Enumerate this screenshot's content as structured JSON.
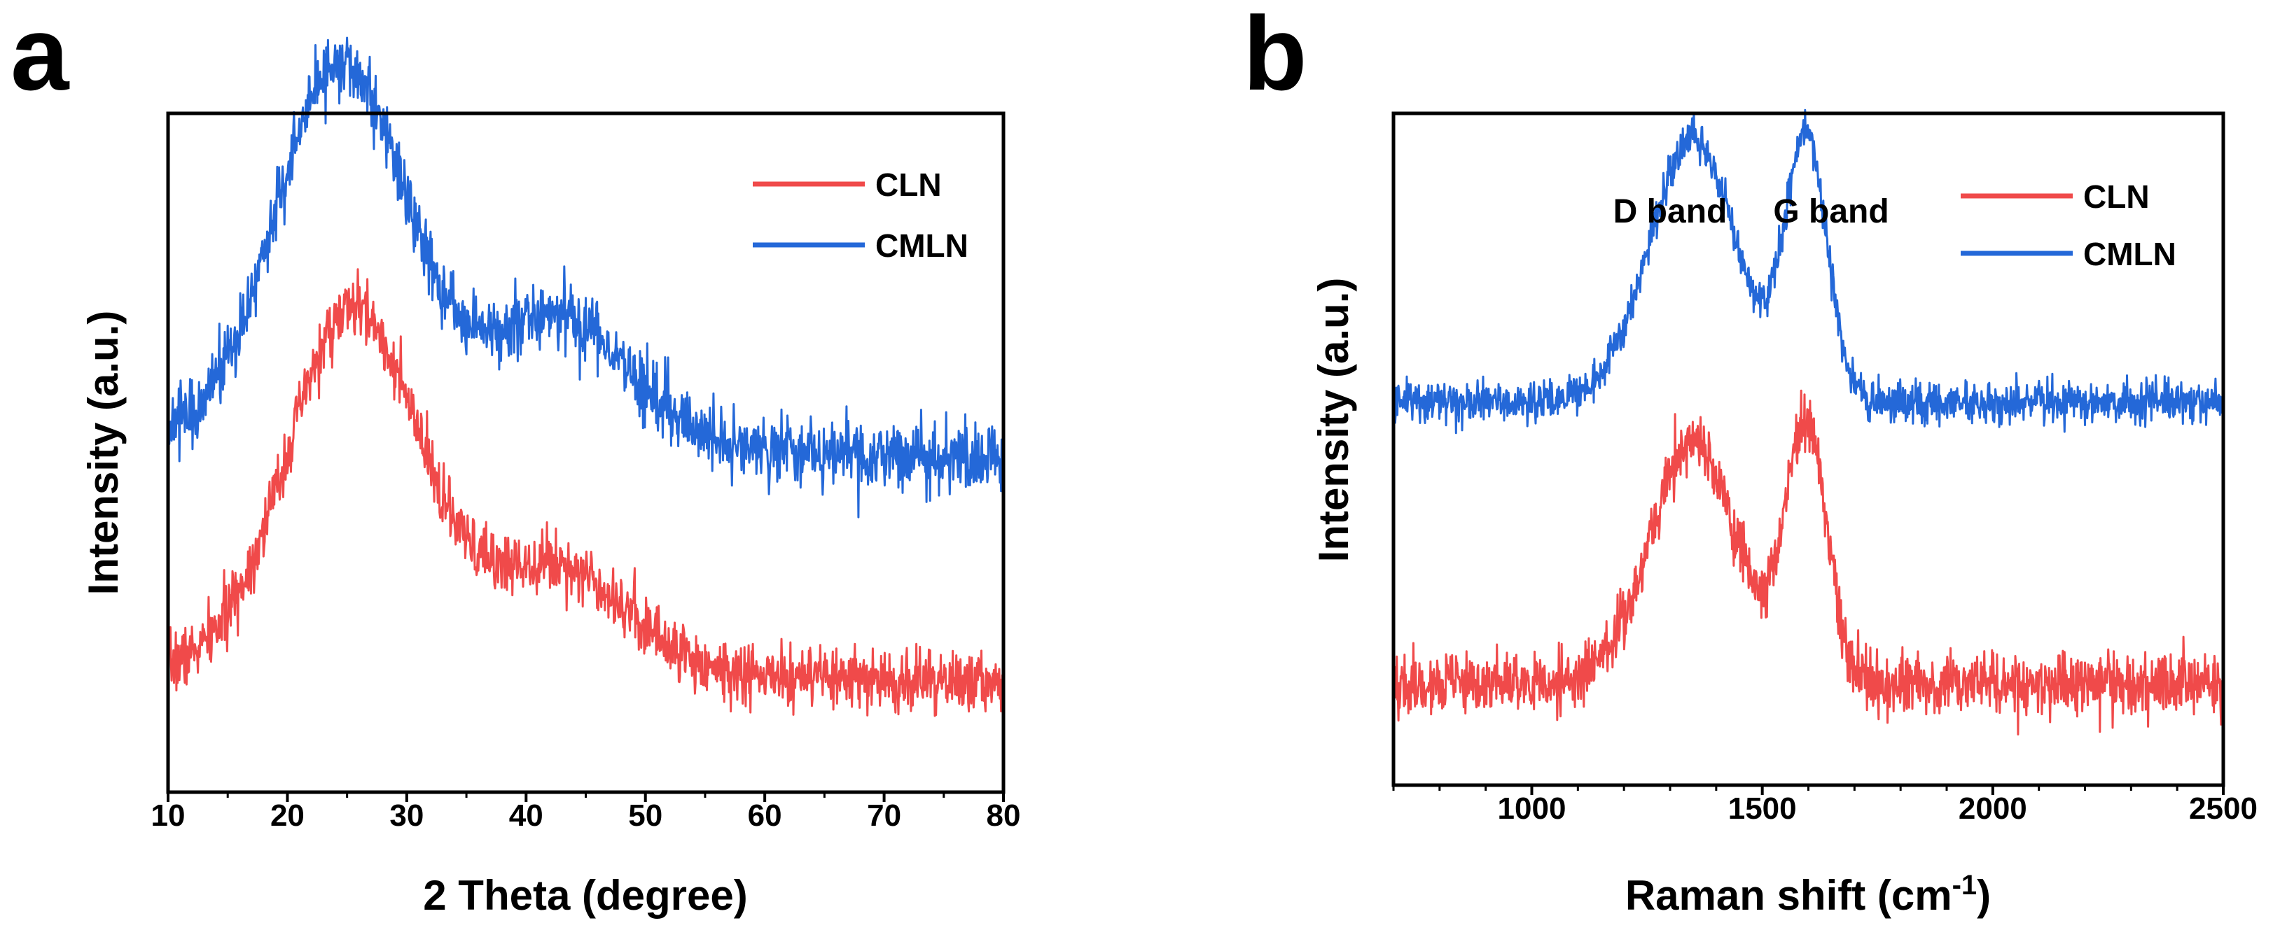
{
  "chart_data": [
    {
      "panel_label": "a",
      "type": "line",
      "title": "",
      "xlabel": "2 Theta (degree)",
      "ylabel": "Intensity (a.u.)",
      "xlim": [
        10,
        80
      ],
      "xticks": [
        10,
        20,
        30,
        40,
        50,
        60,
        70,
        80
      ],
      "y_tick_labels": false,
      "legend_position": "top-right",
      "series": [
        {
          "name": "CLN",
          "color": "#f04a4a",
          "baseline": 0.18,
          "noise": 0.045,
          "peaks": [
            {
              "center": 25.5,
              "height": 0.53,
              "width": 5.5
            },
            {
              "center": 42.5,
              "height": 0.16,
              "width": 6.0
            }
          ],
          "tail": {
            "start": 30,
            "end": 80,
            "from": 0.0,
            "to": -0.02
          }
        },
        {
          "name": "CMLN",
          "color": "#2468d8",
          "baseline": 0.52,
          "noise": 0.05,
          "peaks": [
            {
              "center": 24.5,
              "height": 0.55,
              "width": 5.5
            },
            {
              "center": 42.5,
              "height": 0.19,
              "width": 6.0
            }
          ],
          "tail": {
            "start": 30,
            "end": 80,
            "from": 0.0,
            "to": -0.03
          }
        }
      ]
    },
    {
      "panel_label": "b",
      "type": "line",
      "title": "",
      "xlabel": "Raman shift (cm",
      "xlabel_superscript": "-1",
      "xlabel_suffix": ")",
      "ylabel": "Intensity (a.u.)",
      "xlim": [
        700,
        2500
      ],
      "xticks": [
        1000,
        1500,
        2000,
        2500
      ],
      "y_tick_labels": false,
      "legend_position": "top-right",
      "annotations": [
        {
          "text": "D band",
          "x": 1340
        },
        {
          "text": "G band",
          "x": 1590
        }
      ],
      "series": [
        {
          "name": "CLN",
          "color": "#f04a4a",
          "baseline": 0.15,
          "noise": 0.045,
          "peaks": [
            {
              "center": 1350,
              "height": 0.36,
              "width": 95
            },
            {
              "center": 1595,
              "height": 0.38,
              "width": 45
            }
          ]
        },
        {
          "name": "CMLN",
          "color": "#2468d8",
          "baseline": 0.57,
          "noise": 0.03,
          "peaks": [
            {
              "center": 1350,
              "height": 0.39,
              "width": 95
            },
            {
              "center": 1595,
              "height": 0.39,
              "width": 45
            }
          ]
        }
      ]
    }
  ]
}
